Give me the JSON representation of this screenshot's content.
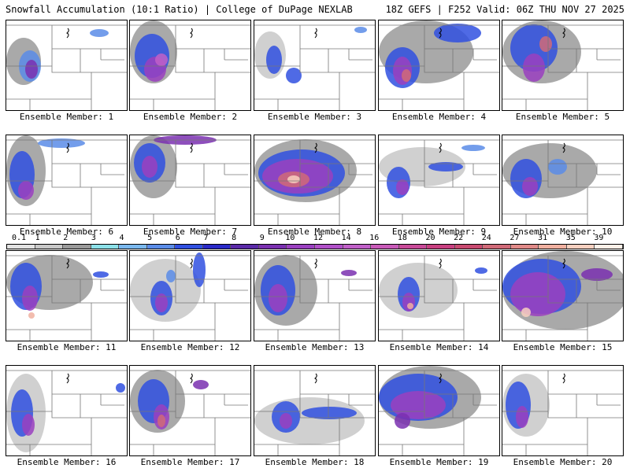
{
  "header": {
    "left_title": "Snowfall Accumulation (10:1 Ratio) | College of DuPage NEXLAB",
    "right_title": "18Z GEFS | F252 Valid: 06Z THU NOV 27 2025"
  },
  "members": [
    {
      "label": "Ensemble Member: 1"
    },
    {
      "label": "Ensemble Member: 2"
    },
    {
      "label": "Ensemble Member: 3"
    },
    {
      "label": "Ensemble Member: 4"
    },
    {
      "label": "Ensemble Member: 5"
    },
    {
      "label": "Ensemble Member: 6"
    },
    {
      "label": "Ensemble Member: 7"
    },
    {
      "label": "Ensemble Member: 8"
    },
    {
      "label": "Ensemble Member: 9"
    },
    {
      "label": "Ensemble Member: 10"
    },
    {
      "label": "Ensemble Member: 11"
    },
    {
      "label": "Ensemble Member: 12"
    },
    {
      "label": "Ensemble Member: 13"
    },
    {
      "label": "Ensemble Member: 14"
    },
    {
      "label": "Ensemble Member: 15"
    },
    {
      "label": "Ensemble Member: 16"
    },
    {
      "label": "Ensemble Member: 17"
    },
    {
      "label": "Ensemble Member: 18"
    },
    {
      "label": "Ensemble Member: 19"
    },
    {
      "label": "Ensemble Member: 20"
    }
  ],
  "legend": {
    "ticks": [
      "0.1",
      "1",
      "2",
      "3",
      "4",
      "5",
      "6",
      "7",
      "8",
      "9",
      "10",
      "12",
      "14",
      "16",
      "18",
      "20",
      "22",
      "24",
      "27",
      "31",
      "35",
      "39"
    ],
    "colors": [
      "#e2e2e2",
      "#c8c8c8",
      "#9a9a9a",
      "#8ce0e8",
      "#7ab8ee",
      "#5a8ce8",
      "#3050e0",
      "#2a2ac8",
      "#5a2aa8",
      "#7a30b0",
      "#9a40c0",
      "#b050c8",
      "#c060c8",
      "#c85ab8",
      "#c84a98",
      "#c84080",
      "#c84a70",
      "#d06a78",
      "#e08a88",
      "#f0b0a0",
      "#f8d0c0",
      "#fff0e8"
    ]
  },
  "colors": {
    "background": "#ffffff",
    "map_border": "#000000"
  }
}
